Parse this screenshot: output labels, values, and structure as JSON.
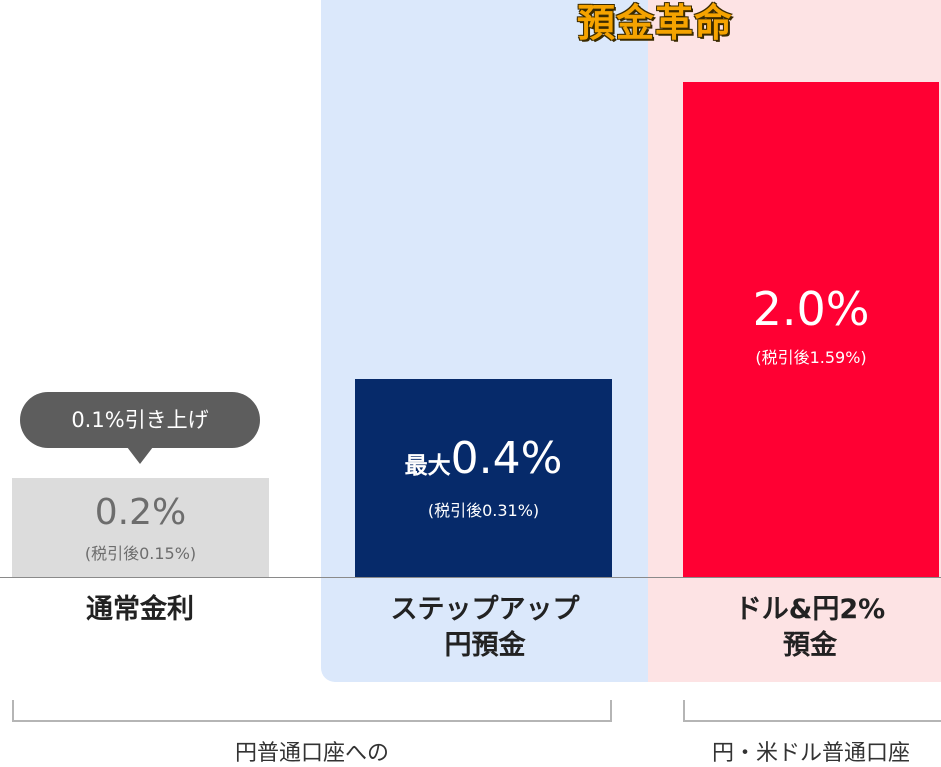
{
  "campaign_title": "預金革命",
  "callout": {
    "text": "0.1%引き上げ"
  },
  "chart_data": {
    "type": "bar",
    "ylim": [
      0,
      2.2
    ],
    "categories": [
      "通常金利",
      "ステップアップ円預金",
      "ドル&円2%預金"
    ],
    "category_lines": [
      [
        "通常金利"
      ],
      [
        "ステップアップ",
        "円預金"
      ],
      [
        "ドル&円2%",
        "預金"
      ]
    ],
    "values": [
      0.2,
      0.4,
      2.0
    ],
    "after_tax_values": [
      0.15,
      0.31,
      1.59
    ],
    "labels": [
      {
        "prefix": "",
        "main": "0.2%",
        "sub": "(税引後0.15%)"
      },
      {
        "prefix": "最大",
        "main": "0.4%",
        "sub": "(税引後0.31%)"
      },
      {
        "prefix": "",
        "main": "2.0%",
        "sub": "(税引後1.59%)"
      }
    ],
    "colors": [
      "#dcdcdc",
      "#062a6a",
      "#ff0033"
    ]
  },
  "groups": [
    {
      "label": "円普通口座への"
    },
    {
      "label": "円・米ドル普通口座"
    }
  ],
  "colors": {
    "campaign_gold": "#f5a300",
    "panel_blue": "#dbe8fb",
    "panel_pink": "#fde3e4"
  }
}
